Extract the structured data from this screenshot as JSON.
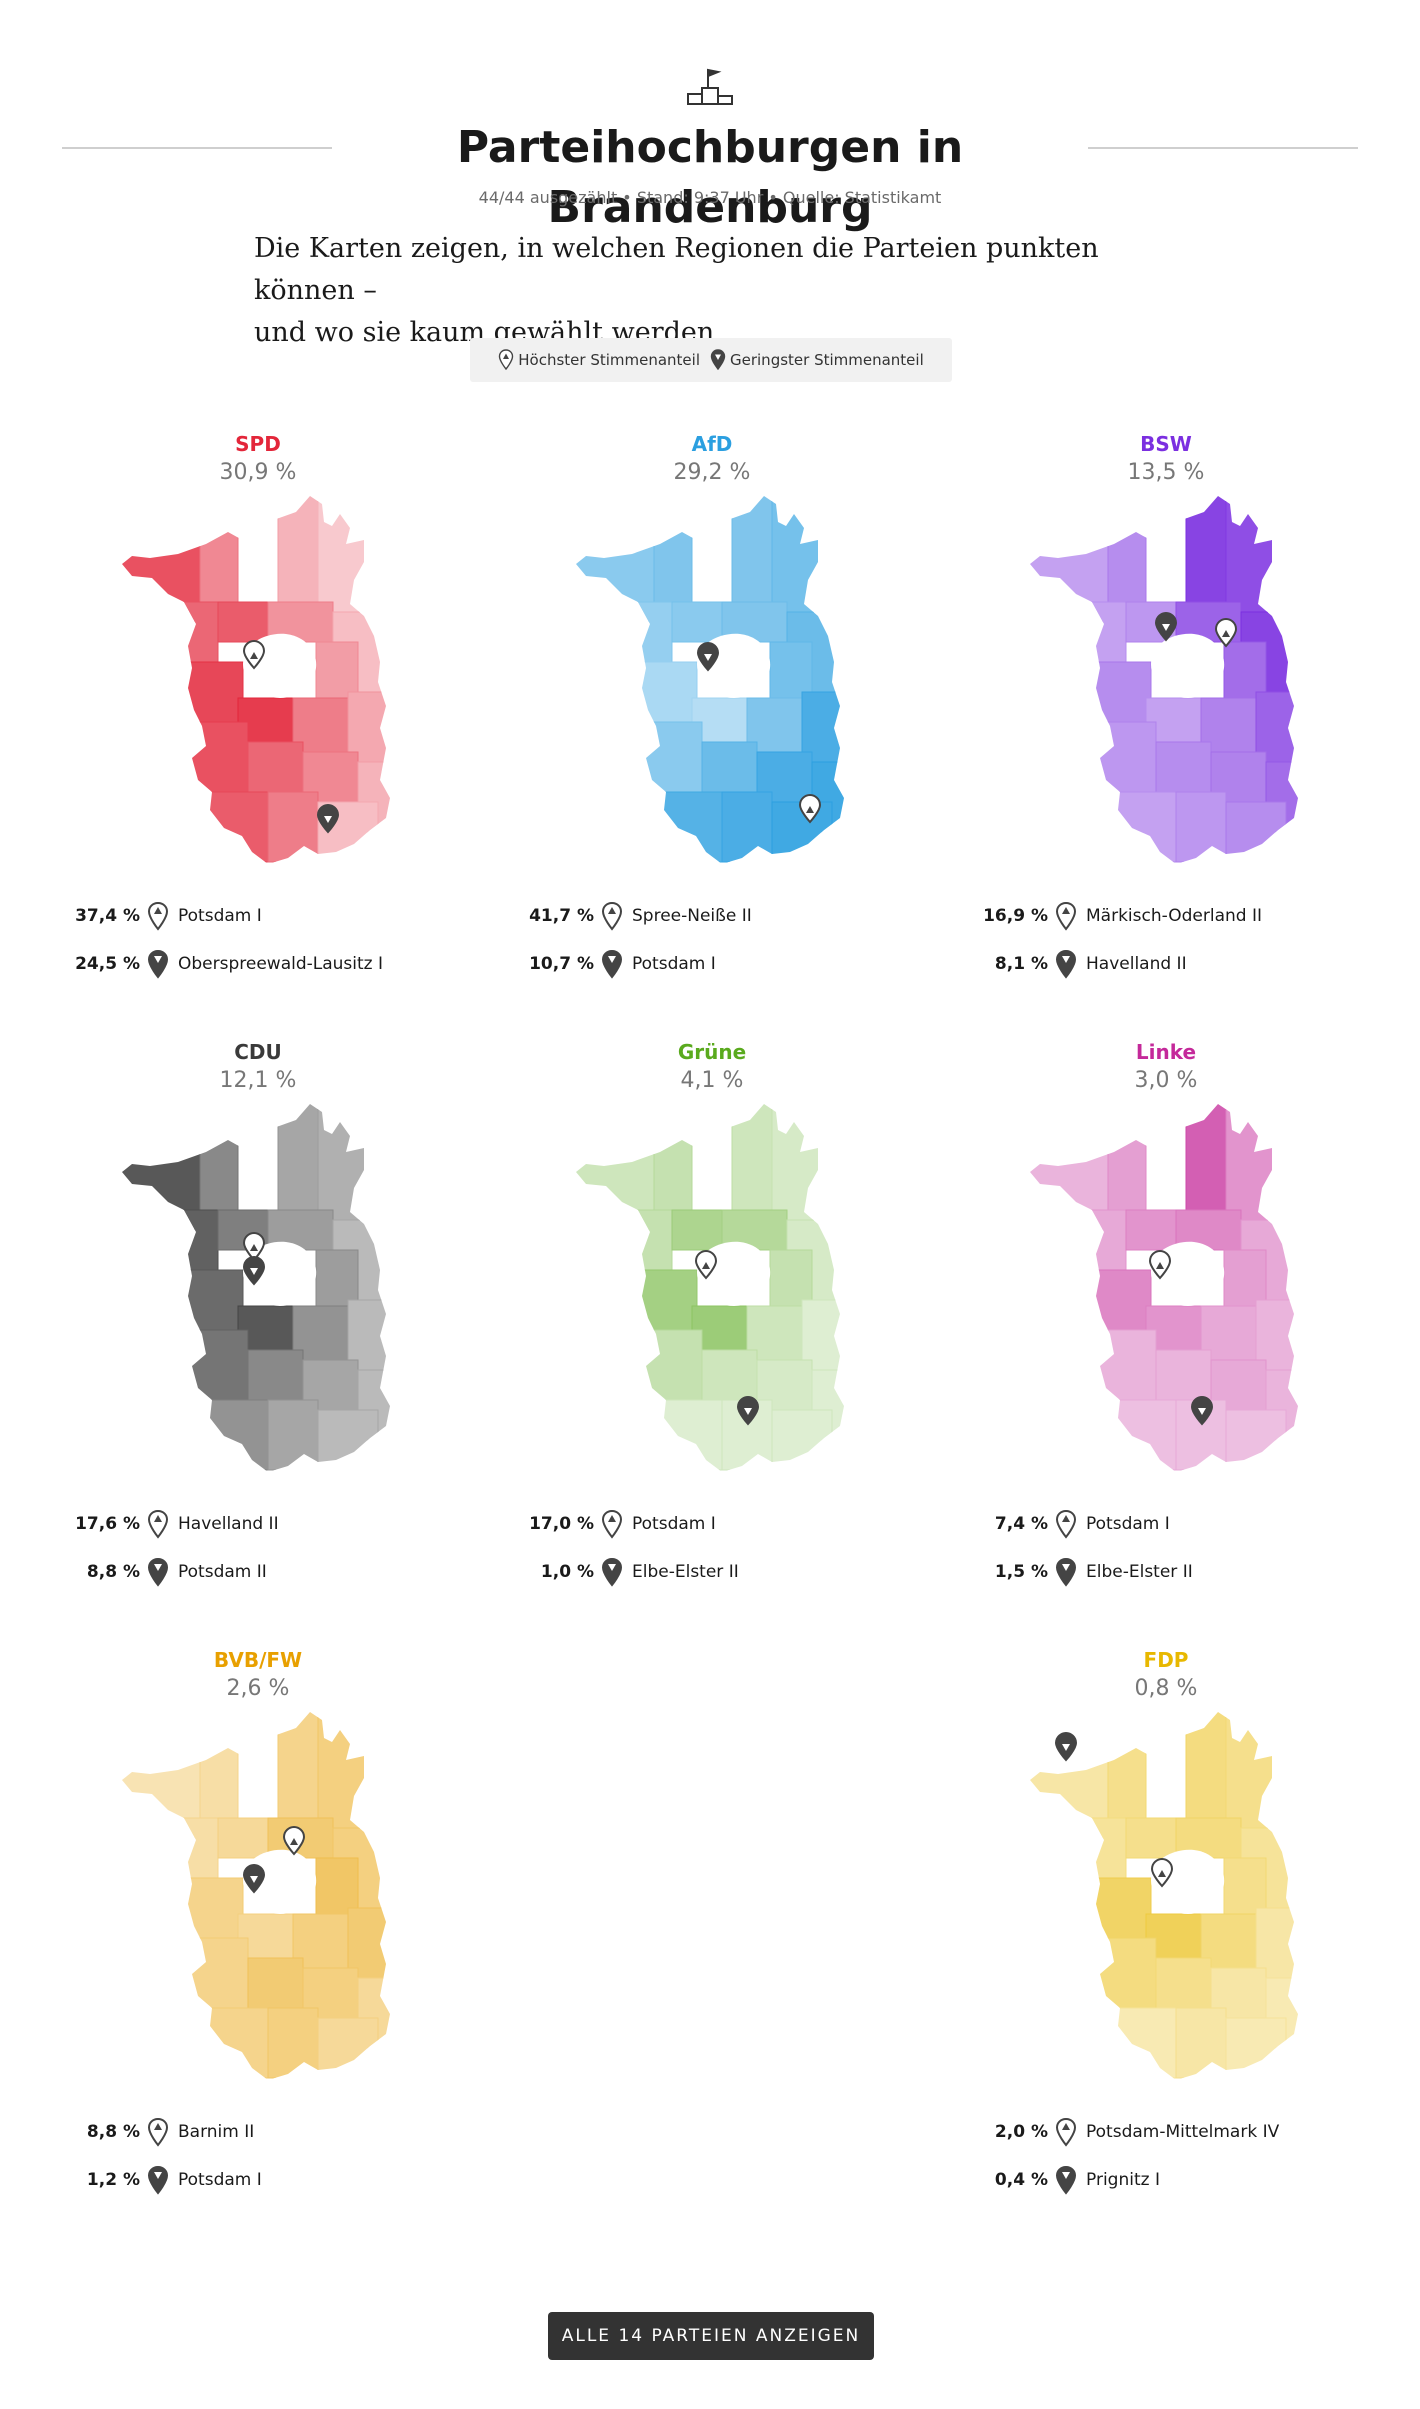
{
  "header": {
    "icon": "podium-flag-icon",
    "title": "Parteihochburgen in Brandenburg",
    "meta": "44/44 ausgezählt • Stand: 9:37 Uhr • Quelle: Statistikamt",
    "intro_line1": "Die Karten zeigen, in welchen Regionen die Parteien punkten können –",
    "intro_line2": "und wo sie kaum gewählt werden."
  },
  "legend": {
    "highest": "Höchster Stimmenanteil",
    "lowest": "Geringster Stimmenanteil"
  },
  "parties": [
    {
      "name": "SPD",
      "share": "30,9 %",
      "color": "#e3263a",
      "max_value": "37,4 %",
      "max_district": "Potsdam I",
      "min_value": "24,5 %",
      "min_district": "Oberspreewald-Lausitz I"
    },
    {
      "name": "AfD",
      "share": "29,2 %",
      "color": "#2b9fe0",
      "max_value": "41,7 %",
      "max_district": "Spree-Neiße II",
      "min_value": "10,7 %",
      "min_district": "Potsdam I"
    },
    {
      "name": "BSW",
      "share": "13,5 %",
      "color": "#7b2fe0",
      "max_value": "16,9 %",
      "max_district": "Märkisch-Oderland II",
      "min_value": "8,1 %",
      "min_district": "Havelland II"
    },
    {
      "name": "CDU",
      "share": "12,1 %",
      "color": "#3a3a3a",
      "max_value": "17,6 %",
      "max_district": "Havelland II",
      "min_value": "8,8 %",
      "min_district": "Potsdam II"
    },
    {
      "name": "Grüne",
      "share": "4,1 %",
      "color": "#5aaa1e",
      "max_value": "17,0 %",
      "max_district": "Potsdam I",
      "min_value": "1,0 %",
      "min_district": "Elbe-Elster II"
    },
    {
      "name": "Linke",
      "share": "3,0 %",
      "color": "#c4299a",
      "max_value": "7,4 %",
      "max_district": "Potsdam I",
      "min_value": "1,5 %",
      "min_district": "Elbe-Elster II"
    },
    {
      "name": "BVB/FW",
      "share": "2,6 %",
      "color": "#e8a000",
      "max_value": "8,8 %",
      "max_district": "Barnim II",
      "min_value": "1,2 %",
      "min_district": "Potsdam I"
    },
    {
      "name": "FDP",
      "share": "0,8 %",
      "color": "#e8b800",
      "max_value": "2,0 %",
      "max_district": "Potsdam-Mittelmark IV",
      "min_value": "0,4 %",
      "min_district": "Prignitz I"
    }
  ],
  "button": {
    "label": "ALLE 14 PARTEIEN ANZEIGEN"
  }
}
